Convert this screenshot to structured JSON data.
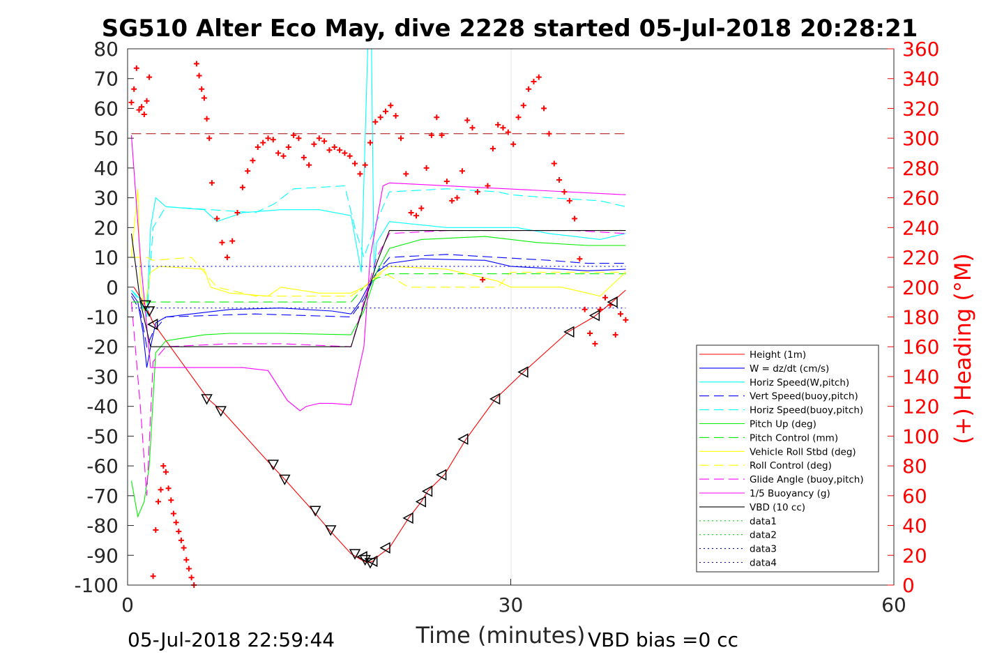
{
  "chart_data": {
    "type": "line",
    "title": "SG510 Alter Eco May, dive 2228 started 05-Jul-2018 20:28:21",
    "xlabel": "Time (minutes)",
    "ylabel": "",
    "y2label": "(+) Heading (°M)",
    "xlim": [
      0,
      60
    ],
    "ylim": [
      -100,
      80
    ],
    "y2lim": [
      0,
      360
    ],
    "x_ticks": [
      "0",
      "30",
      "60"
    ],
    "y_ticks": [
      "80",
      "70",
      "60",
      "50",
      "40",
      "30",
      "20",
      "10",
      "0",
      "-10",
      "-20",
      "-30",
      "-40",
      "-50",
      "-60",
      "-70",
      "-80",
      "-90",
      "-100"
    ],
    "y2_ticks": [
      "360",
      "340",
      "320",
      "300",
      "280",
      "260",
      "240",
      "220",
      "200",
      "180",
      "160",
      "140",
      "120",
      "100",
      "80",
      "60",
      "40",
      "20",
      "0"
    ],
    "footer_left": "05-Jul-2018 22:59:44",
    "footer_right": "VBD bias =0 cc",
    "grid": "x at 30",
    "legend_position": "lower-right",
    "colors": {
      "red": "#ff0000",
      "blue": "#0000ff",
      "cyan": "#00ffff",
      "green": "#00ee00",
      "yellow": "#ffff00",
      "magenta": "#ff00ff",
      "black": "#000000",
      "darkred": "#aa0000"
    },
    "series": [
      {
        "name": "Height (1m)",
        "color": "#ff0000",
        "style": "solid",
        "x": [
          0.5,
          1.5,
          2.0,
          6.3,
          7.5,
          11.2,
          12.3,
          14.5,
          15.8,
          17.5,
          18.3,
          18.8,
          19.2,
          19.7,
          20.5,
          22.0,
          23.0,
          23.5,
          24.8,
          26.5,
          28.8,
          31.0,
          34.5,
          36.5,
          37.8,
          39.0
        ],
        "y": [
          0,
          -7,
          -12,
          -37.5,
          -42,
          -59.5,
          -64.5,
          -75,
          -81.5,
          -89.5,
          -91.5,
          -92.5,
          -92,
          -90,
          -87.5,
          -77.5,
          -72,
          -68.5,
          -63,
          -51,
          -37.5,
          -28.5,
          -15,
          -10,
          -5.5,
          -1
        ]
      },
      {
        "name": "W = dz/dt (cm/s)",
        "color": "#0000ff",
        "style": "solid",
        "x": [
          0.3,
          0.8,
          1.2,
          1.5,
          1.8,
          2.2,
          3.0,
          5.0,
          8.0,
          12.0,
          16.0,
          17.5,
          18.2,
          18.8,
          19.5,
          20.5,
          23.0,
          28.0,
          30.0,
          34.0,
          36.0,
          39.0
        ],
        "y": [
          -2,
          -5,
          -15,
          -27,
          -20,
          -12,
          -10,
          -9,
          -7.5,
          -7,
          -8,
          -9,
          -5,
          0,
          5,
          8,
          9.5,
          9,
          7,
          6,
          5.5,
          6
        ]
      },
      {
        "name": "Horiz Speed(W,pitch)",
        "color": "#00ffff",
        "style": "solid",
        "x": [
          0.3,
          1.0,
          1.5,
          1.8,
          2.2,
          3.0,
          6.0,
          7.0,
          9.0,
          12.0,
          15.0,
          17.5,
          18.3,
          18.8,
          19.1,
          19.3,
          19.5,
          20.5,
          25.0,
          29.0,
          30.5,
          33.0,
          35.0,
          37.0,
          39.0
        ],
        "y": [
          -1,
          -4,
          -10,
          20,
          30,
          27,
          26,
          22,
          25,
          26,
          26,
          24,
          5,
          80,
          80,
          5,
          15,
          22,
          20,
          20,
          20,
          18,
          17,
          16,
          18
        ]
      },
      {
        "name": "Vert Speed(buoy,pitch)",
        "color": "#0000ff",
        "style": "dashed",
        "x": [
          0.3,
          1.0,
          1.5,
          2.0,
          3.0,
          10.0,
          17.5,
          18.5,
          19.5,
          20.5,
          25.0,
          29.0,
          33.0,
          36.0,
          39.0
        ],
        "y": [
          -3,
          -8,
          -20,
          -15,
          -10,
          -9,
          -10,
          -4,
          5,
          10,
          11,
          10,
          9,
          8,
          8
        ]
      },
      {
        "name": "Horiz Speed(buoy,pitch)",
        "color": "#00ffff",
        "style": "dashed",
        "x": [
          0.3,
          1.0,
          1.5,
          2.0,
          3.0,
          10.0,
          11.5,
          13.0,
          17.0,
          17.8,
          18.5,
          19.5,
          20.5,
          25.0,
          29.0,
          30.0,
          33.0,
          37.0,
          39.0
        ],
        "y": [
          -1,
          -5,
          -10,
          20,
          27,
          25,
          28,
          33,
          34,
          20,
          10,
          22,
          32,
          33,
          32,
          31,
          30,
          29,
          27
        ]
      },
      {
        "name": "Pitch Up (deg)",
        "color": "#00ee00",
        "style": "solid",
        "x": [
          0.3,
          0.8,
          1.3,
          1.7,
          2.2,
          3.0,
          6.0,
          8.0,
          12.0,
          17.5,
          18.5,
          19.5,
          20.5,
          23.0,
          28.0,
          32.0,
          36.0,
          39.0
        ],
        "y": [
          -65,
          -77,
          -72,
          -60,
          -22,
          -18,
          -16,
          -15.5,
          -15.5,
          -16,
          -8,
          5,
          13,
          16,
          17,
          15,
          14,
          14
        ]
      },
      {
        "name": "Pitch Control (mm)",
        "color": "#00ee00",
        "style": "dashed",
        "x": [
          0.3,
          1.5,
          2.0,
          17.5,
          18.5,
          19.5,
          20.5,
          39.0
        ],
        "y": [
          -5,
          -5,
          -5,
          -5,
          0,
          3,
          4.5,
          4.5
        ]
      },
      {
        "name": "Vehicle Roll Stbd (deg)",
        "color": "#ffff00",
        "style": "solid",
        "x": [
          0.3,
          0.8,
          1.0,
          1.3,
          1.8,
          2.5,
          6.0,
          6.5,
          8.0,
          11.0,
          12.0,
          15.0,
          17.5,
          18.5,
          19.5,
          20.5,
          25.0,
          29.0,
          30.0,
          34.0,
          36.0,
          37.0,
          39.0
        ],
        "y": [
          10,
          33,
          2,
          -8,
          5,
          7,
          6,
          0,
          -2,
          -3,
          0,
          -2,
          -2,
          0,
          4,
          7,
          6,
          2,
          0,
          0,
          -2,
          -3,
          5
        ]
      },
      {
        "name": "Roll Control (deg)",
        "color": "#ffff00",
        "style": "dashed",
        "x": [
          0.3,
          1.5,
          2.0,
          5.0,
          7.0,
          10.0,
          17.5,
          18.5,
          20.0,
          22.0,
          24.0,
          29.0,
          30.0,
          34.0,
          37.0,
          39.0
        ],
        "y": [
          10,
          10,
          9,
          10,
          0,
          -3,
          -3,
          0,
          5,
          0,
          0,
          0,
          5,
          5,
          5,
          5
        ]
      },
      {
        "name": "Glide Angle (buoy,pitch)",
        "color": "#ff00ff",
        "style": "dashed",
        "x": [
          0.3,
          1.0,
          1.5,
          2.0,
          3.0,
          8.0,
          12.0,
          17.5,
          18.5,
          19.5,
          20.5,
          25.0,
          30.0,
          35.0,
          39.0
        ],
        "y": [
          -5,
          -40,
          -70,
          -25,
          -20,
          -19,
          -19,
          -20,
          -5,
          10,
          18,
          19,
          19,
          19,
          18
        ]
      },
      {
        "name": "1/5 Buoyancy (g)",
        "color": "#ff00ff",
        "style": "solid",
        "x": [
          0.3,
          1.0,
          1.8,
          2.2,
          5.0,
          9.0,
          11.0,
          12.5,
          13.5,
          14.0,
          15.0,
          16.0,
          17.5,
          18.5,
          19.0,
          20.0,
          20.5,
          39.0
        ],
        "y": [
          51,
          10,
          -27,
          -27,
          -27,
          -27,
          -28,
          -38,
          -41.5,
          -40,
          -39,
          -39,
          -39.5,
          -20,
          10,
          34,
          35,
          31
        ]
      },
      {
        "name": "VBD (10 cc)",
        "color": "#000000",
        "style": "solid",
        "x": [
          0.3,
          1.0,
          1.8,
          2.2,
          10.0,
          17.5,
          18.5,
          19.5,
          20.5,
          39.0
        ],
        "y": [
          18,
          -5,
          -20,
          -20,
          -20,
          -20,
          -6,
          8,
          19,
          19
        ]
      },
      {
        "name": "data1",
        "color": "#00dd00",
        "style": "dotted",
        "x": [],
        "y": []
      },
      {
        "name": "data2",
        "color": "#00dd00",
        "style": "dotted",
        "x": [],
        "y": []
      },
      {
        "name": "data3",
        "color": "#0000cc",
        "style": "dotted",
        "x": [
          0.3,
          39.0
        ],
        "y": [
          7,
          7
        ]
      },
      {
        "name": "data4",
        "color": "#0000cc",
        "style": "dotted",
        "x": [
          0.3,
          39.0
        ],
        "y": [
          -7,
          -7
        ]
      }
    ],
    "reference_line": {
      "color": "#aa0000",
      "style": "dashed",
      "y": 51.5,
      "x": [
        0.3,
        39.0
      ]
    },
    "heading": {
      "color": "#ff0000",
      "x": [
        0.3,
        0.5,
        0.7,
        0.9,
        1.1,
        1.3,
        1.5,
        1.7,
        2.0,
        2.2,
        2.4,
        2.6,
        2.8,
        3.0,
        3.2,
        3.4,
        3.6,
        3.8,
        4.0,
        4.2,
        4.4,
        4.6,
        4.8,
        5.0,
        5.2,
        5.4,
        5.6,
        5.8,
        6.0,
        6.2,
        6.4,
        6.6,
        7.0,
        7.4,
        7.8,
        8.2,
        8.6,
        9.0,
        9.4,
        9.8,
        10.2,
        10.6,
        11.0,
        11.4,
        11.8,
        12.2,
        12.6,
        13.0,
        13.4,
        13.8,
        14.2,
        14.6,
        15.0,
        15.4,
        15.8,
        16.2,
        16.6,
        17.0,
        17.4,
        17.8,
        18.2,
        18.6,
        19.0,
        19.4,
        19.8,
        20.2,
        20.6,
        21.0,
        21.4,
        21.8,
        22.2,
        22.6,
        23.0,
        23.4,
        23.8,
        24.2,
        24.6,
        25.0,
        25.4,
        25.8,
        26.2,
        26.6,
        27.0,
        27.4,
        27.8,
        28.2,
        28.6,
        29.0,
        29.4,
        29.8,
        30.2,
        30.6,
        31.0,
        31.4,
        31.8,
        32.2,
        32.6,
        33.0,
        33.4,
        33.8,
        34.2,
        34.6,
        35.0,
        35.4,
        35.8,
        36.2,
        36.6,
        37.0,
        37.4,
        37.8,
        38.2,
        38.6,
        39.0
      ],
      "y": [
        324,
        333,
        347,
        319,
        321,
        316,
        325,
        341,
        6,
        37,
        56,
        64,
        80,
        76,
        65,
        57,
        48,
        42,
        36,
        30,
        25,
        17,
        11,
        5,
        0,
        350,
        342,
        333,
        327,
        313,
        300,
        270,
        246,
        230,
        220,
        231,
        250,
        267,
        278,
        285,
        294,
        297,
        300,
        299,
        290,
        288,
        294,
        302,
        300,
        287,
        282,
        296,
        300,
        298,
        292,
        294,
        292,
        290,
        288,
        283,
        276,
        282,
        297,
        311,
        314,
        318,
        322,
        315,
        300,
        276,
        250,
        248,
        253,
        280,
        302,
        314,
        302,
        271,
        258,
        260,
        278,
        312,
        307,
        264,
        205,
        268,
        293,
        309,
        307,
        304,
        296,
        314,
        322,
        333,
        338,
        341,
        320,
        303,
        283,
        272,
        264,
        258,
        246,
        219,
        185,
        169,
        162,
        185,
        193,
        188,
        168,
        182,
        178
      ]
    },
    "markers": {
      "down_triangles": {
        "x": [
          1.4,
          1.7,
          6.2,
          7.3,
          11.4,
          12.3,
          14.7,
          15.9,
          17.8,
          18.6,
          19.0
        ],
        "y": [
          -6,
          -8,
          -37.5,
          -41.5,
          -59.5,
          -64.5,
          -75,
          -81.5,
          -89.5,
          -91.5,
          -92.5
        ]
      },
      "left_triangles": {
        "x": [
          2.0,
          18.4,
          19.2,
          20.2,
          22.0,
          23.0,
          23.5,
          24.6,
          26.3,
          28.8,
          31.0,
          34.6,
          36.6,
          38.0
        ],
        "y": [
          -12.5,
          -90.5,
          -92,
          -87.5,
          -77.5,
          -72,
          -68.5,
          -63,
          -51,
          -37.5,
          -28.5,
          -15,
          -9.5,
          -5
        ]
      }
    },
    "legend": {
      "entries": [
        "Height (1m)",
        "W = dz/dt (cm/s)",
        "Horiz Speed(W,pitch)",
        "Vert Speed(buoy,pitch)",
        "Horiz Speed(buoy,pitch)",
        "Pitch Up (deg)",
        "Pitch Control (mm)",
        "Vehicle Roll Stbd (deg)",
        "Roll Control (deg)",
        "Glide Angle (buoy,pitch)",
        "1/5 Buoyancy (g)",
        "VBD (10 cc)",
        "data1",
        "data2",
        "data3",
        "data4"
      ]
    }
  }
}
